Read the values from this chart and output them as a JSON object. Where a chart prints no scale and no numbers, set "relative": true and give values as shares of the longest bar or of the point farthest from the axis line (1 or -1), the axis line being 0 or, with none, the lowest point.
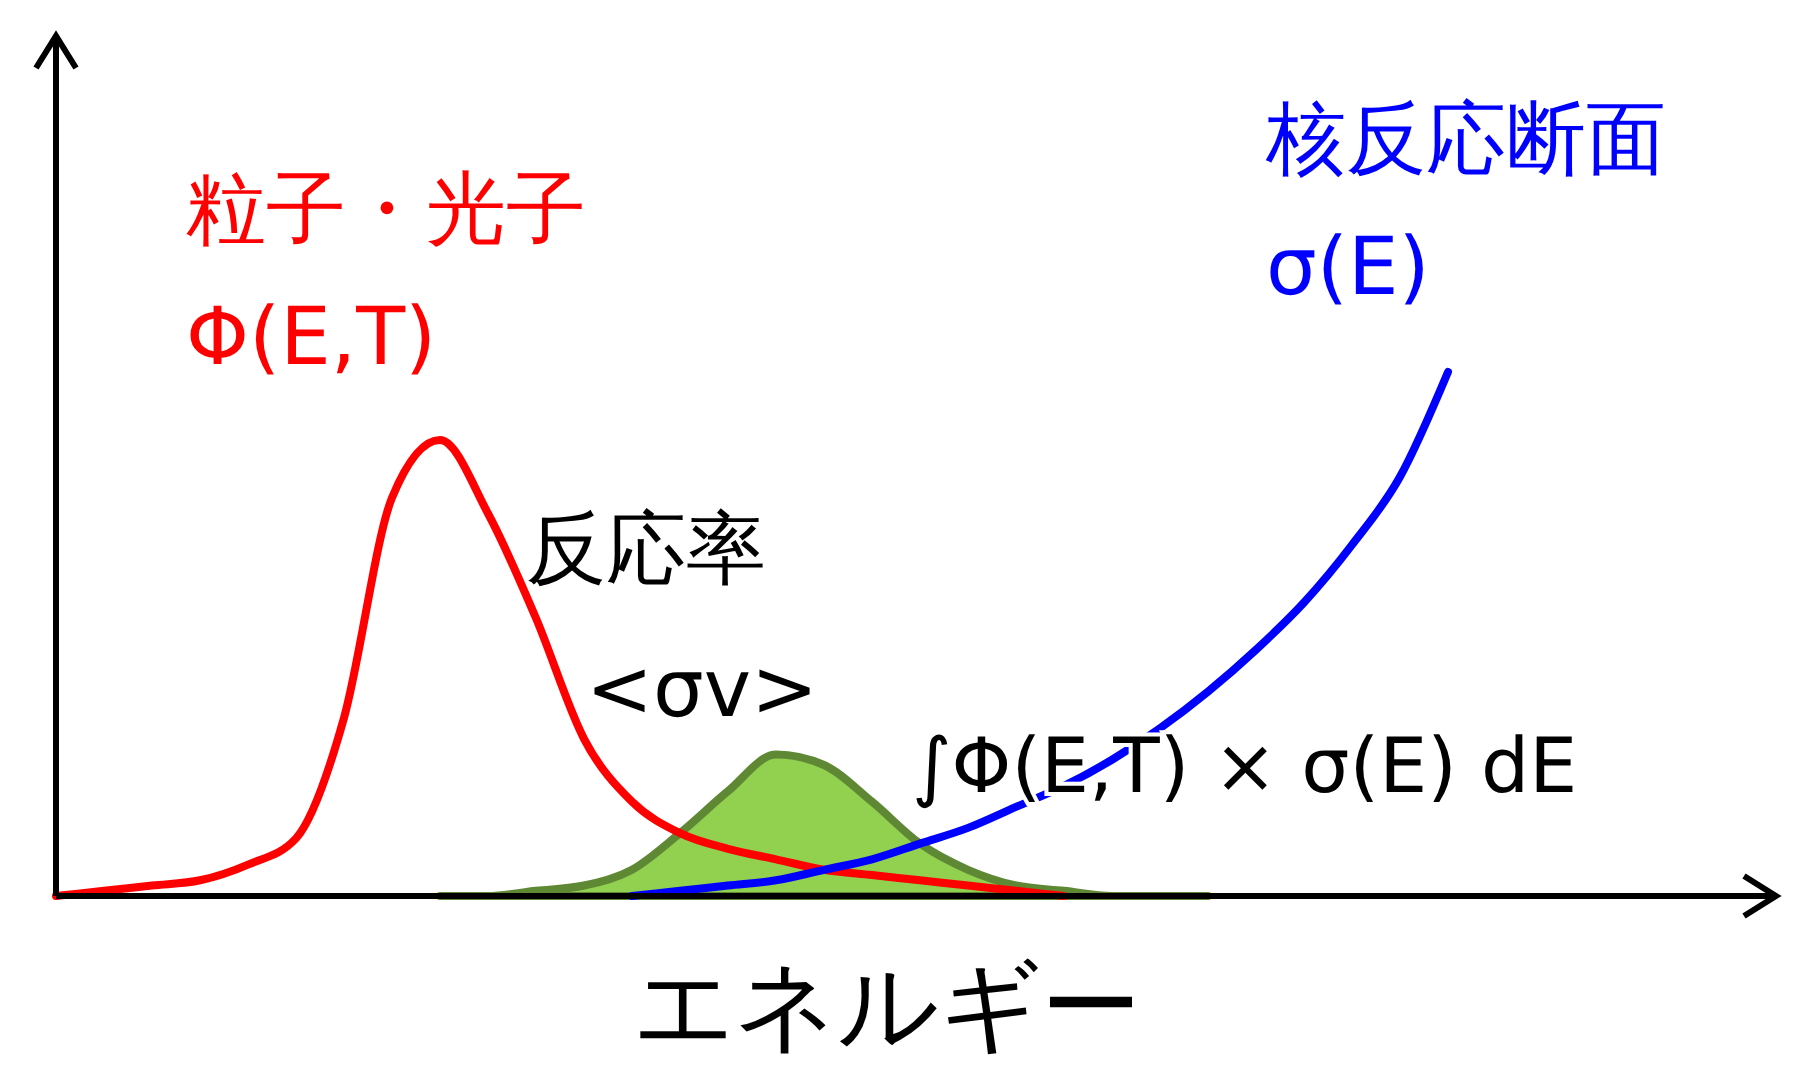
{
  "chart_data": {
    "type": "line",
    "relative": true,
    "xlabel": "エネルギー",
    "categories": [
      null,
      null,
      null,
      null,
      null,
      null,
      null,
      null,
      null,
      null,
      null,
      null,
      null,
      null,
      null,
      null,
      null,
      null,
      null,
      null,
      null,
      null,
      null,
      null,
      null,
      null,
      null,
      null,
      null,
      null,
      null,
      null,
      null,
      null,
      null,
      null
    ],
    "series": [
      {
        "name": "粒子・光子 Φ(E,T)",
        "color": "#ff0000",
        "values": [
          0,
          0.01,
          0.02,
          0.03,
          0.06,
          0.11,
          0.34,
          0.76,
          0.87,
          0.73,
          0.53,
          0.3,
          0.18,
          0.12,
          0.09,
          0.07,
          0.05,
          0.04,
          0.03,
          0.02,
          0.01,
          0,
          null,
          null,
          null,
          null,
          null,
          null,
          null,
          null,
          null,
          null,
          null,
          null,
          null,
          null
        ]
      },
      {
        "name": "核反応断面 σ(E)",
        "color": "#0000ff",
        "values": [
          null,
          null,
          null,
          null,
          null,
          null,
          null,
          null,
          null,
          null,
          null,
          null,
          0,
          0.01,
          0.02,
          0.03,
          0.05,
          0.07,
          0.1,
          0.13,
          0.17,
          0.21,
          0.26,
          0.32,
          0.39,
          0.47,
          0.56,
          0.67,
          0.8,
          1,
          null,
          null,
          null,
          null,
          null,
          null
        ]
      },
      {
        "name": "反応率 <σv>",
        "type": "area",
        "color": "#92d050",
        "values": [
          null,
          null,
          null,
          null,
          null,
          null,
          null,
          null,
          0,
          0,
          0.01,
          0.02,
          0.05,
          0.12,
          0.2,
          0.27,
          0.25,
          0.18,
          0.1,
          0.05,
          0.02,
          0.01,
          0,
          0,
          0,
          null,
          null,
          null,
          null,
          null,
          null,
          null,
          null,
          null,
          null,
          null
        ]
      }
    ],
    "annotations": [
      "∫Φ(E,T) × σ(E) dE"
    ]
  }
}
